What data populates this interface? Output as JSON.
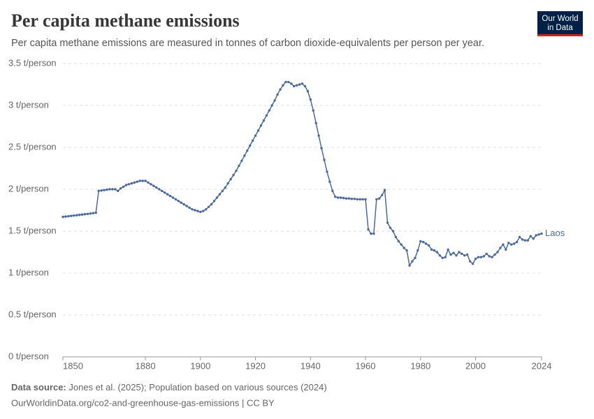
{
  "chart_data": {
    "type": "line",
    "title": "Per capita methane emissions",
    "subtitle": "Per capita methane emissions are measured in tonnes of carbon dioxide-equivalents per person per year.",
    "logo": [
      "Our World",
      "in Data"
    ],
    "source_label": "Data source:",
    "source": "Jones et al. (2025); Population based on various sources (2024)",
    "footer": "OurWorldinData.org/co2-and-greenhouse-gas-emissions | CC BY",
    "grid": true,
    "xlim": [
      1850,
      2024
    ],
    "xticks": [
      1850,
      1880,
      1900,
      1920,
      1940,
      1960,
      1980,
      2000,
      2024
    ],
    "ylim": [
      0,
      3.5
    ],
    "yticks": [
      {
        "value": 0,
        "label": "0 t/person"
      },
      {
        "value": 0.5,
        "label": "0.5 t/person"
      },
      {
        "value": 1,
        "label": "1 t/person"
      },
      {
        "value": 1.5,
        "label": "1.5 t/person"
      },
      {
        "value": 2,
        "label": "2 t/person"
      },
      {
        "value": 2.5,
        "label": "2.5 t/person"
      },
      {
        "value": 3,
        "label": "3 t/person"
      },
      {
        "value": 3.5,
        "label": "3.5 t/person"
      }
    ],
    "x": [
      1850,
      1851,
      1852,
      1853,
      1854,
      1855,
      1856,
      1857,
      1858,
      1859,
      1860,
      1861,
      1862,
      1863,
      1864,
      1865,
      1866,
      1867,
      1868,
      1869,
      1870,
      1871,
      1872,
      1873,
      1874,
      1875,
      1876,
      1877,
      1878,
      1879,
      1880,
      1881,
      1882,
      1883,
      1884,
      1885,
      1886,
      1887,
      1888,
      1889,
      1890,
      1891,
      1892,
      1893,
      1894,
      1895,
      1896,
      1897,
      1898,
      1899,
      1900,
      1901,
      1902,
      1903,
      1904,
      1905,
      1906,
      1907,
      1908,
      1909,
      1910,
      1911,
      1912,
      1913,
      1914,
      1915,
      1916,
      1917,
      1918,
      1919,
      1920,
      1921,
      1922,
      1923,
      1924,
      1925,
      1926,
      1927,
      1928,
      1929,
      1930,
      1931,
      1932,
      1933,
      1934,
      1935,
      1936,
      1937,
      1938,
      1939,
      1940,
      1941,
      1942,
      1943,
      1944,
      1945,
      1946,
      1947,
      1948,
      1949,
      1950,
      1951,
      1952,
      1953,
      1954,
      1955,
      1956,
      1957,
      1958,
      1959,
      1960,
      1961,
      1962,
      1963,
      1964,
      1965,
      1966,
      1967,
      1968,
      1969,
      1970,
      1971,
      1972,
      1973,
      1974,
      1975,
      1976,
      1977,
      1978,
      1979,
      1980,
      1981,
      1982,
      1983,
      1984,
      1985,
      1986,
      1987,
      1988,
      1989,
      1990,
      1991,
      1992,
      1993,
      1994,
      1995,
      1996,
      1997,
      1998,
      1999,
      2000,
      2001,
      2002,
      2003,
      2004,
      2005,
      2006,
      2007,
      2008,
      2009,
      2010,
      2011,
      2012,
      2013,
      2014,
      2015,
      2016,
      2017,
      2018,
      2019,
      2020,
      2021,
      2022,
      2023,
      2024
    ],
    "series": [
      {
        "name": "Laos",
        "color": "#4c6a9c",
        "values": [
          1.67,
          1.674,
          1.678,
          1.682,
          1.686,
          1.69,
          1.694,
          1.698,
          1.702,
          1.706,
          1.71,
          1.715,
          1.72,
          1.98,
          1.985,
          1.99,
          1.995,
          2.0,
          2.0,
          2.0,
          1.98,
          2.01,
          2.03,
          2.05,
          2.06,
          2.07,
          2.08,
          2.09,
          2.1,
          2.1,
          2.1,
          2.08,
          2.06,
          2.04,
          2.02,
          2.0,
          1.98,
          1.96,
          1.94,
          1.92,
          1.9,
          1.88,
          1.86,
          1.84,
          1.82,
          1.8,
          1.78,
          1.76,
          1.75,
          1.74,
          1.73,
          1.74,
          1.76,
          1.79,
          1.82,
          1.86,
          1.9,
          1.94,
          1.98,
          2.02,
          2.07,
          2.12,
          2.17,
          2.22,
          2.28,
          2.34,
          2.4,
          2.46,
          2.52,
          2.58,
          2.64,
          2.7,
          2.76,
          2.82,
          2.88,
          2.94,
          3.0,
          3.06,
          3.13,
          3.19,
          3.24,
          3.28,
          3.28,
          3.26,
          3.23,
          3.24,
          3.25,
          3.26,
          3.23,
          3.17,
          3.07,
          2.94,
          2.79,
          2.64,
          2.49,
          2.35,
          2.21,
          2.09,
          1.98,
          1.91,
          1.9,
          1.9,
          1.895,
          1.89,
          1.89,
          1.885,
          1.885,
          1.88,
          1.88,
          1.88,
          1.88,
          1.52,
          1.47,
          1.47,
          1.88,
          1.89,
          1.93,
          1.99,
          1.6,
          1.54,
          1.5,
          1.43,
          1.38,
          1.34,
          1.3,
          1.27,
          1.09,
          1.14,
          1.18,
          1.27,
          1.38,
          1.37,
          1.35,
          1.33,
          1.28,
          1.27,
          1.25,
          1.21,
          1.18,
          1.19,
          1.28,
          1.22,
          1.24,
          1.21,
          1.25,
          1.23,
          1.21,
          1.22,
          1.14,
          1.11,
          1.17,
          1.19,
          1.19,
          1.2,
          1.23,
          1.2,
          1.19,
          1.22,
          1.25,
          1.3,
          1.34,
          1.28,
          1.36,
          1.34,
          1.35,
          1.37,
          1.43,
          1.4,
          1.39,
          1.39,
          1.44,
          1.41,
          1.45,
          1.46,
          1.47
        ]
      }
    ]
  }
}
